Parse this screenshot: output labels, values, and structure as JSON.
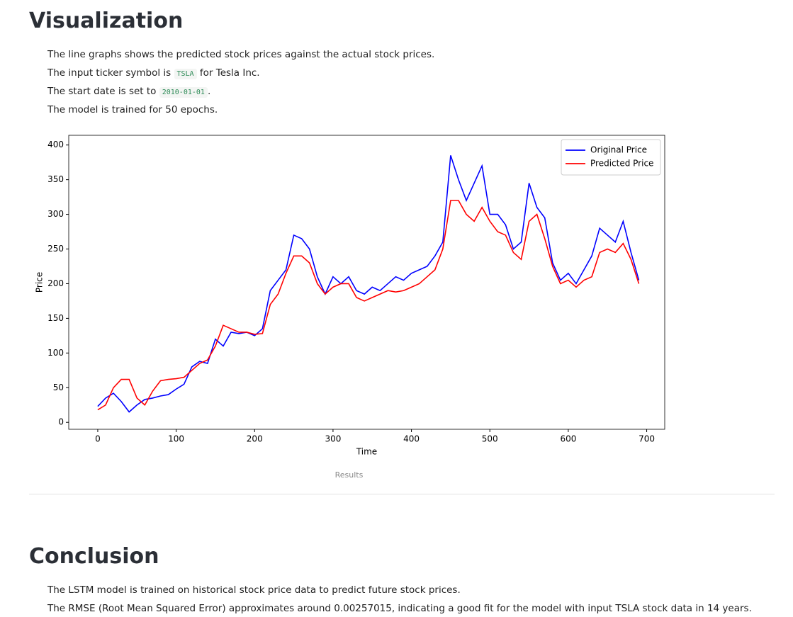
{
  "visualization": {
    "heading": "Visualization",
    "paragraphs": [
      [
        "The line graphs shows the predicted stock prices against the actual stock prices."
      ],
      [
        "The input ticker symbol is ",
        "TSLA",
        " for Tesla Inc."
      ],
      [
        "The start date is set to ",
        "2010-01-01",
        "."
      ],
      [
        "The model is trained for 50 epochs."
      ]
    ],
    "caption": "Results"
  },
  "chart_data": {
    "type": "line",
    "xlabel": "Time",
    "ylabel": "Price",
    "x": [
      0,
      10,
      20,
      30,
      40,
      50,
      60,
      70,
      80,
      90,
      100,
      110,
      120,
      130,
      140,
      150,
      160,
      170,
      180,
      190,
      200,
      210,
      220,
      230,
      240,
      250,
      260,
      270,
      280,
      290,
      300,
      310,
      320,
      330,
      340,
      350,
      360,
      370,
      380,
      390,
      400,
      410,
      420,
      430,
      440,
      450,
      460,
      470,
      480,
      490,
      500,
      510,
      520,
      530,
      540,
      550,
      560,
      570,
      580,
      590,
      600,
      610,
      620,
      630,
      640,
      650,
      660,
      670,
      680,
      690
    ],
    "series": [
      {
        "name": "Original Price",
        "color": "#0000ff",
        "values": [
          23,
          35,
          42,
          30,
          15,
          25,
          33,
          35,
          38,
          40,
          48,
          55,
          80,
          88,
          85,
          120,
          110,
          130,
          128,
          130,
          125,
          135,
          190,
          205,
          220,
          270,
          265,
          250,
          210,
          185,
          210,
          200,
          210,
          190,
          185,
          195,
          190,
          200,
          210,
          205,
          215,
          220,
          225,
          240,
          260,
          385,
          350,
          320,
          345,
          370,
          300,
          300,
          285,
          250,
          260,
          345,
          310,
          295,
          230,
          205,
          215,
          200,
          220,
          240,
          280,
          270,
          260,
          290,
          245,
          205
        ]
      },
      {
        "name": "Predicted Price",
        "color": "#ff0000",
        "values": [
          18,
          25,
          50,
          62,
          62,
          35,
          25,
          45,
          60,
          62,
          63,
          65,
          75,
          85,
          90,
          110,
          140,
          135,
          130,
          130,
          127,
          128,
          170,
          185,
          215,
          240,
          240,
          230,
          200,
          185,
          195,
          200,
          200,
          180,
          175,
          180,
          185,
          190,
          188,
          190,
          195,
          200,
          210,
          220,
          250,
          320,
          320,
          300,
          290,
          310,
          290,
          275,
          270,
          245,
          235,
          290,
          300,
          265,
          225,
          200,
          205,
          195,
          205,
          210,
          245,
          250,
          245,
          258,
          235,
          200
        ]
      }
    ],
    "xlim": [
      -37,
      723
    ],
    "ylim": [
      -10,
      414
    ],
    "xticks": [
      0,
      100,
      200,
      300,
      400,
      500,
      600,
      700
    ],
    "yticks": [
      0,
      50,
      100,
      150,
      200,
      250,
      300,
      350,
      400
    ],
    "legend": "upper right"
  },
  "conclusion": {
    "heading": "Conclusion",
    "paragraphs": [
      "The LSTM model is trained on historical stock price data to predict future stock prices.",
      "The RMSE (Root Mean Squared Error) approximates around 0.00257015, indicating a good fit for the model with input TSLA stock data in 14 years."
    ]
  }
}
